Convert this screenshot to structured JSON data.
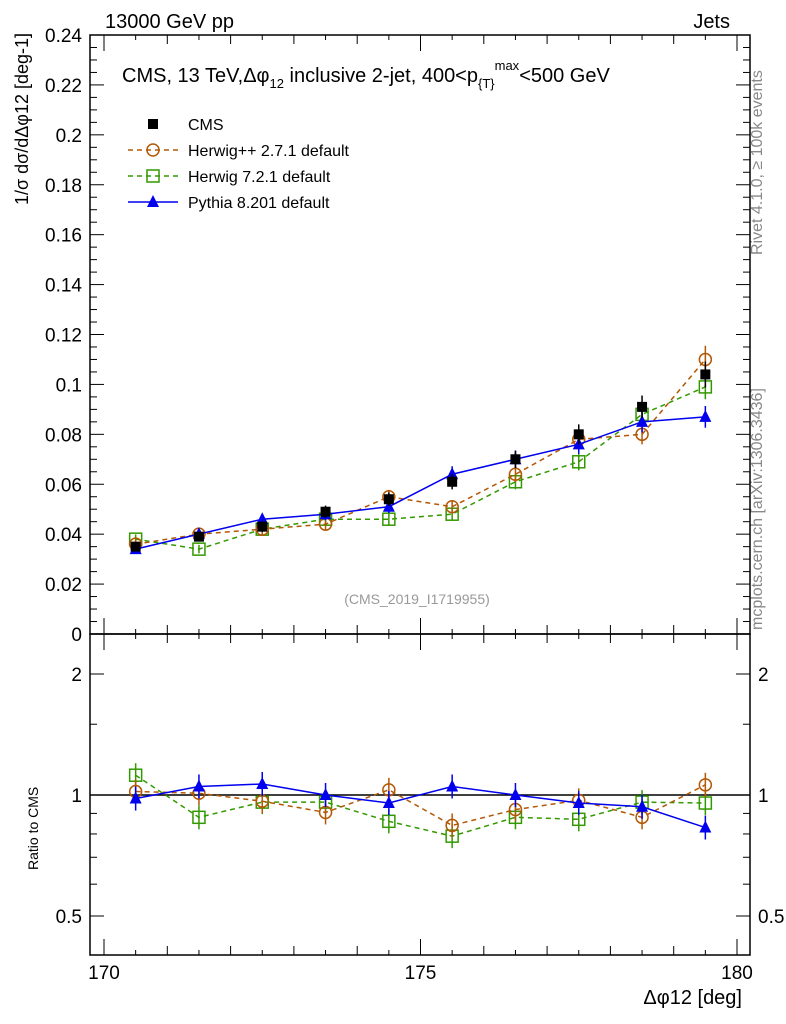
{
  "chart_data": [
    {
      "type": "line",
      "header_left": "13000 GeV pp",
      "header_right": "Jets",
      "title": "CMS, 13 TeV, Δφ12 inclusive 2-jet, 400<pT max<500 GeV",
      "title_parts": {
        "a": "CMS, 13 TeV,",
        "b": "Δφ",
        "c": "12",
        "d": " inclusive 2-jet, 400<p",
        "e": "{T}",
        "f": "max",
        "g": "<500 GeV"
      },
      "ylabel": "1/σ dσ/dΔφ12 [deg-1]",
      "ylim": [
        0,
        0.24
      ],
      "yticks": [
        "0",
        "0.02",
        "0.04",
        "0.06",
        "0.08",
        "0.1",
        "0.12",
        "0.14",
        "0.16",
        "0.18",
        "0.2",
        "0.22",
        "0.24"
      ],
      "x": [
        170.5,
        171.5,
        172.5,
        173.5,
        174.5,
        175.5,
        176.5,
        177.5,
        178.5,
        179.5
      ],
      "xlim": [
        169.8,
        180.2
      ],
      "series": [
        {
          "name": "CMS",
          "color": "#000000",
          "marker": "filled-square",
          "values": [
            0.035,
            0.039,
            0.043,
            0.049,
            0.054,
            0.061,
            0.07,
            0.08,
            0.091,
            0.104
          ]
        },
        {
          "name": "Herwig++ 2.7.1 default",
          "color": "#b35806",
          "marker": "open-circle",
          "dash": true,
          "values": [
            0.036,
            0.04,
            0.042,
            0.044,
            0.055,
            0.051,
            0.064,
            0.078,
            0.08,
            0.11
          ]
        },
        {
          "name": "Herwig 7.2.1 default",
          "color": "#339900",
          "marker": "open-square",
          "dash": true,
          "values": [
            0.038,
            0.034,
            0.042,
            0.046,
            0.046,
            0.048,
            0.061,
            0.069,
            0.088,
            0.099
          ]
        },
        {
          "name": "Pythia 8.201 default",
          "color": "#0000ee",
          "marker": "filled-triangle",
          "values": [
            0.034,
            0.04,
            0.046,
            0.048,
            0.051,
            0.064,
            0.07,
            0.076,
            0.085,
            0.087
          ]
        }
      ],
      "annotation": "(CMS_2019_I1719955)",
      "side_label_top": "Rivet 4.1.0, ≥ 100k events",
      "side_label_bottom": "mcplots.cern.ch [arXiv:1306.3436]"
    },
    {
      "type": "line",
      "ylabel": "Ratio to CMS",
      "yscale": "log",
      "ylim": [
        0.4,
        2.5
      ],
      "yticks": [
        "0.5",
        "1",
        "2"
      ],
      "xlabel": "Δφ12 [deg]",
      "xlabel_parts": {
        "a": "Δφ",
        "b": "12",
        "c": " [deg]"
      },
      "xticks": [
        "170",
        "175",
        "180"
      ],
      "series": [
        {
          "name": "Herwig++ 2.7.1 default",
          "values": [
            1.02,
            1.01,
            0.965,
            0.905,
            1.03,
            0.84,
            0.92,
            0.97,
            0.88,
            1.06
          ]
        },
        {
          "name": "Herwig 7.2.1 default",
          "values": [
            1.12,
            0.88,
            0.96,
            0.96,
            0.86,
            0.79,
            0.88,
            0.87,
            0.96,
            0.955
          ]
        },
        {
          "name": "Pythia 8.201 default",
          "values": [
            0.98,
            1.05,
            1.065,
            1.0,
            0.955,
            1.05,
            1.0,
            0.955,
            0.935,
            0.83
          ]
        }
      ]
    }
  ]
}
